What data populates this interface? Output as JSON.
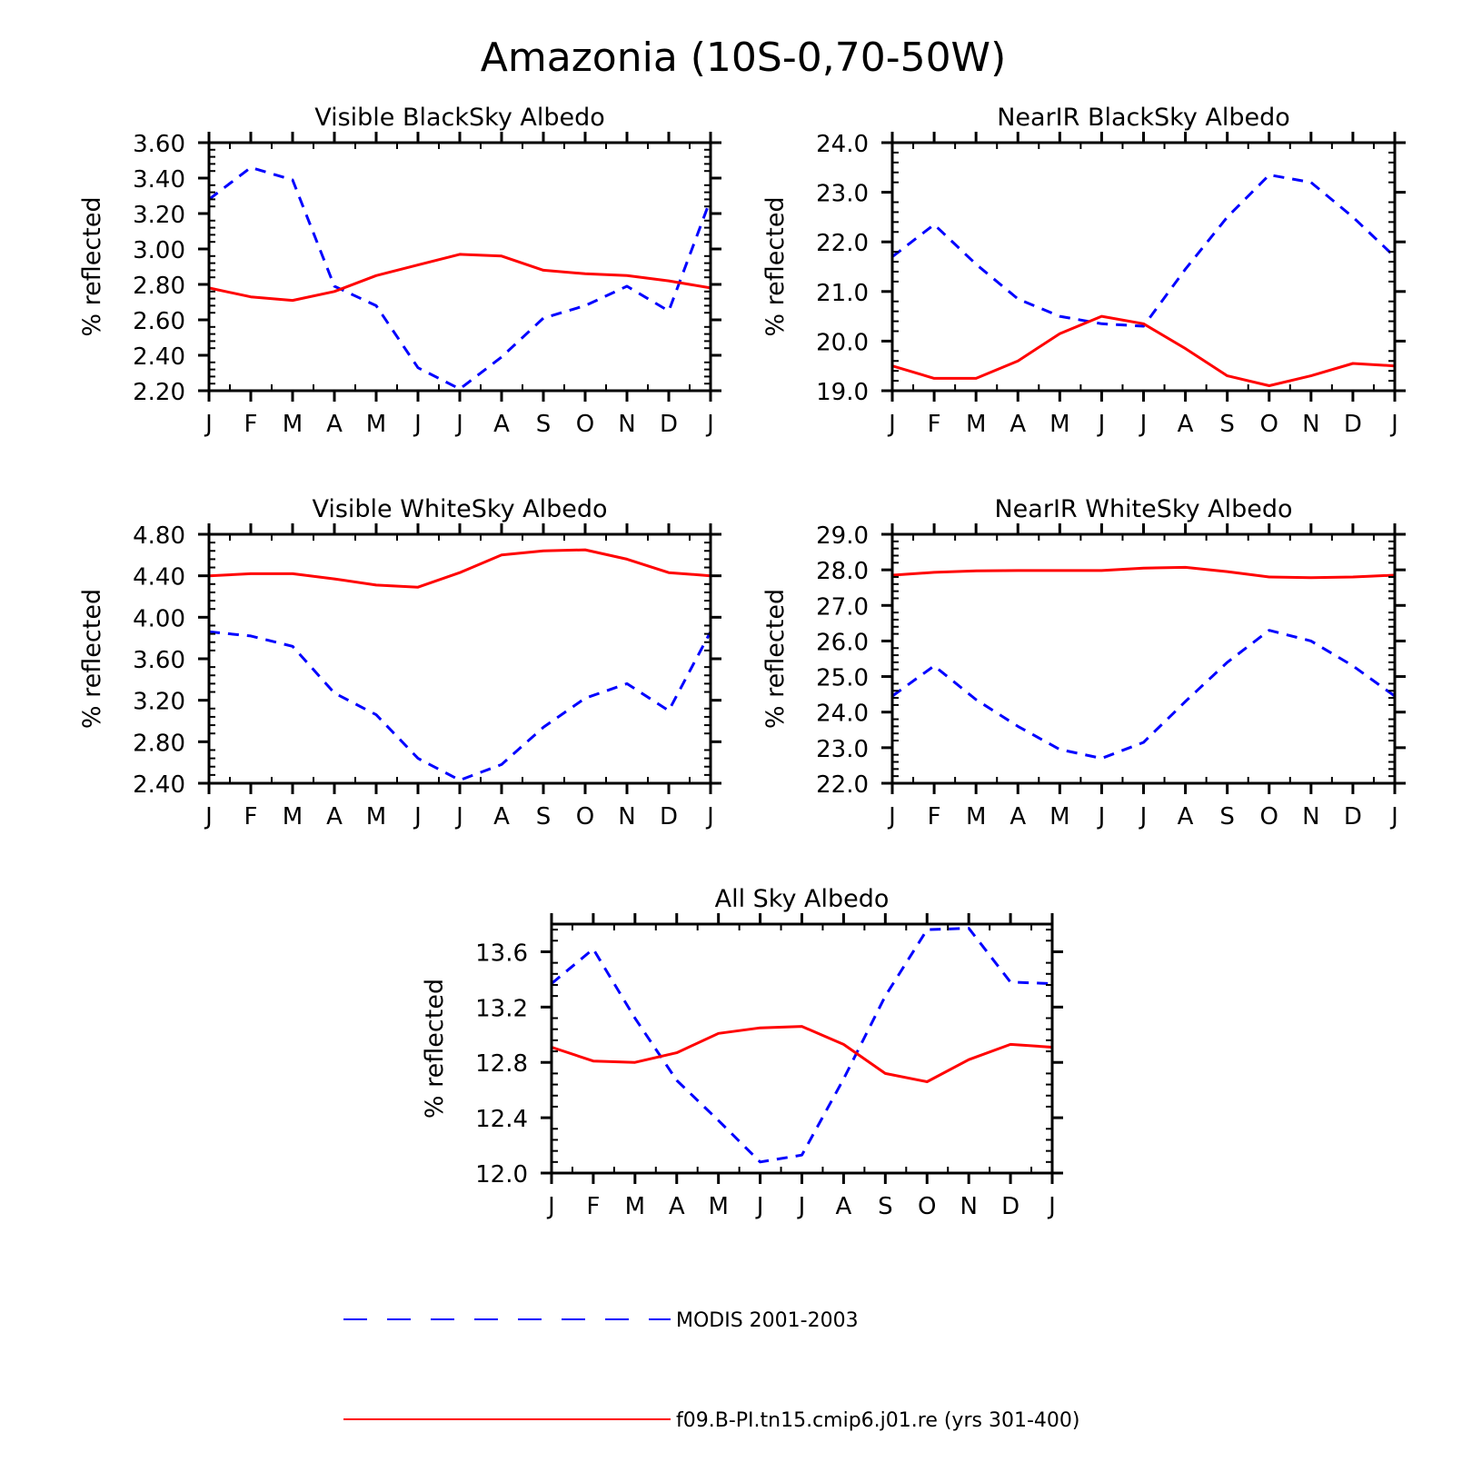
{
  "title": "Amazonia (10S-0,70-50W)",
  "colors": {
    "modis": "#0000ff",
    "model": "#ff0000",
    "axis": "#000000"
  },
  "legend": [
    {
      "label": "MODIS 2001-2003",
      "color": "#0000ff",
      "style": "dashed"
    },
    {
      "label": "f09.B-PI.tn15.cmip6.j01.re (yrs 301-400)",
      "color": "#ff0000",
      "style": "solid"
    }
  ],
  "chart_data": [
    {
      "type": "line",
      "title": "Visible BlackSky Albedo",
      "ylabel": "% reflected",
      "x": [
        "J",
        "F",
        "M",
        "A",
        "M",
        "J",
        "J",
        "A",
        "S",
        "O",
        "N",
        "D",
        "J"
      ],
      "ylim": [
        2.2,
        3.6
      ],
      "yticks": [
        "2.20",
        "2.40",
        "2.60",
        "2.80",
        "3.00",
        "3.20",
        "3.40",
        "3.60"
      ],
      "series": [
        {
          "name": "MODIS 2001-2003",
          "values": [
            3.28,
            3.46,
            3.39,
            2.79,
            2.68,
            2.33,
            2.21,
            2.39,
            2.61,
            2.68,
            2.79,
            2.65,
            3.28
          ]
        },
        {
          "name": "f09.B-PI.tn15.cmip6.j01.re (yrs 301-400)",
          "values": [
            2.78,
            2.73,
            2.71,
            2.76,
            2.85,
            2.91,
            2.97,
            2.96,
            2.88,
            2.86,
            2.85,
            2.82,
            2.78
          ]
        }
      ]
    },
    {
      "type": "line",
      "title": "NearIR BlackSky Albedo",
      "ylabel": "% reflected",
      "x": [
        "J",
        "F",
        "M",
        "A",
        "M",
        "J",
        "J",
        "A",
        "S",
        "O",
        "N",
        "D",
        "J"
      ],
      "ylim": [
        19.0,
        24.0
      ],
      "yticks": [
        "19.0",
        "20.0",
        "21.0",
        "22.0",
        "23.0",
        "24.0"
      ],
      "series": [
        {
          "name": "MODIS 2001-2003",
          "values": [
            21.7,
            22.35,
            21.55,
            20.85,
            20.5,
            20.35,
            20.3,
            21.45,
            22.5,
            23.35,
            23.2,
            22.5,
            21.7
          ]
        },
        {
          "name": "f09.B-PI.tn15.cmip6.j01.re (yrs 301-400)",
          "values": [
            19.5,
            19.25,
            19.25,
            19.6,
            20.15,
            20.5,
            20.35,
            19.85,
            19.3,
            19.1,
            19.3,
            19.55,
            19.5
          ]
        }
      ]
    },
    {
      "type": "line",
      "title": "Visible WhiteSky Albedo",
      "ylabel": "% reflected",
      "x": [
        "J",
        "F",
        "M",
        "A",
        "M",
        "J",
        "J",
        "A",
        "S",
        "O",
        "N",
        "D",
        "J"
      ],
      "ylim": [
        2.4,
        4.8
      ],
      "yticks": [
        "2.40",
        "2.80",
        "3.20",
        "3.60",
        "4.00",
        "4.40",
        "4.80"
      ],
      "series": [
        {
          "name": "MODIS 2001-2003",
          "values": [
            3.86,
            3.82,
            3.72,
            3.27,
            3.06,
            2.64,
            2.43,
            2.58,
            2.94,
            3.22,
            3.36,
            3.1,
            3.86
          ]
        },
        {
          "name": "f09.B-PI.tn15.cmip6.j01.re (yrs 301-400)",
          "values": [
            4.4,
            4.42,
            4.42,
            4.37,
            4.31,
            4.29,
            4.43,
            4.6,
            4.64,
            4.65,
            4.56,
            4.43,
            4.4
          ]
        }
      ]
    },
    {
      "type": "line",
      "title": "NearIR WhiteSky Albedo",
      "ylabel": "% reflected",
      "x": [
        "J",
        "F",
        "M",
        "A",
        "M",
        "J",
        "J",
        "A",
        "S",
        "O",
        "N",
        "D",
        "J"
      ],
      "ylim": [
        22.0,
        29.0
      ],
      "yticks": [
        "22.0",
        "23.0",
        "24.0",
        "25.0",
        "26.0",
        "27.0",
        "28.0",
        "29.0"
      ],
      "series": [
        {
          "name": "MODIS 2001-2003",
          "values": [
            24.45,
            25.3,
            24.35,
            23.6,
            22.95,
            22.7,
            23.15,
            24.3,
            25.4,
            26.3,
            26.0,
            25.3,
            24.45
          ]
        },
        {
          "name": "f09.B-PI.tn15.cmip6.j01.re (yrs 301-400)",
          "values": [
            27.85,
            27.93,
            27.97,
            27.98,
            27.98,
            27.98,
            28.05,
            28.07,
            27.95,
            27.8,
            27.78,
            27.8,
            27.85
          ]
        }
      ]
    },
    {
      "type": "line",
      "title": "All Sky Albedo",
      "ylabel": "% reflected",
      "x": [
        "J",
        "F",
        "M",
        "A",
        "M",
        "J",
        "J",
        "A",
        "S",
        "O",
        "N",
        "D",
        "J"
      ],
      "ylim": [
        12.0,
        13.8
      ],
      "yticks": [
        "12.0",
        "12.4",
        "12.8",
        "13.2",
        "13.6"
      ],
      "series": [
        {
          "name": "MODIS 2001-2003",
          "values": [
            13.37,
            13.62,
            13.12,
            12.67,
            12.38,
            12.08,
            12.13,
            12.68,
            13.28,
            13.76,
            13.77,
            13.38,
            13.37
          ]
        },
        {
          "name": "f09.B-PI.tn15.cmip6.j01.re (yrs 301-400)",
          "values": [
            12.91,
            12.81,
            12.8,
            12.87,
            13.01,
            13.05,
            13.06,
            12.93,
            12.72,
            12.66,
            12.82,
            12.93,
            12.91
          ]
        }
      ]
    }
  ]
}
